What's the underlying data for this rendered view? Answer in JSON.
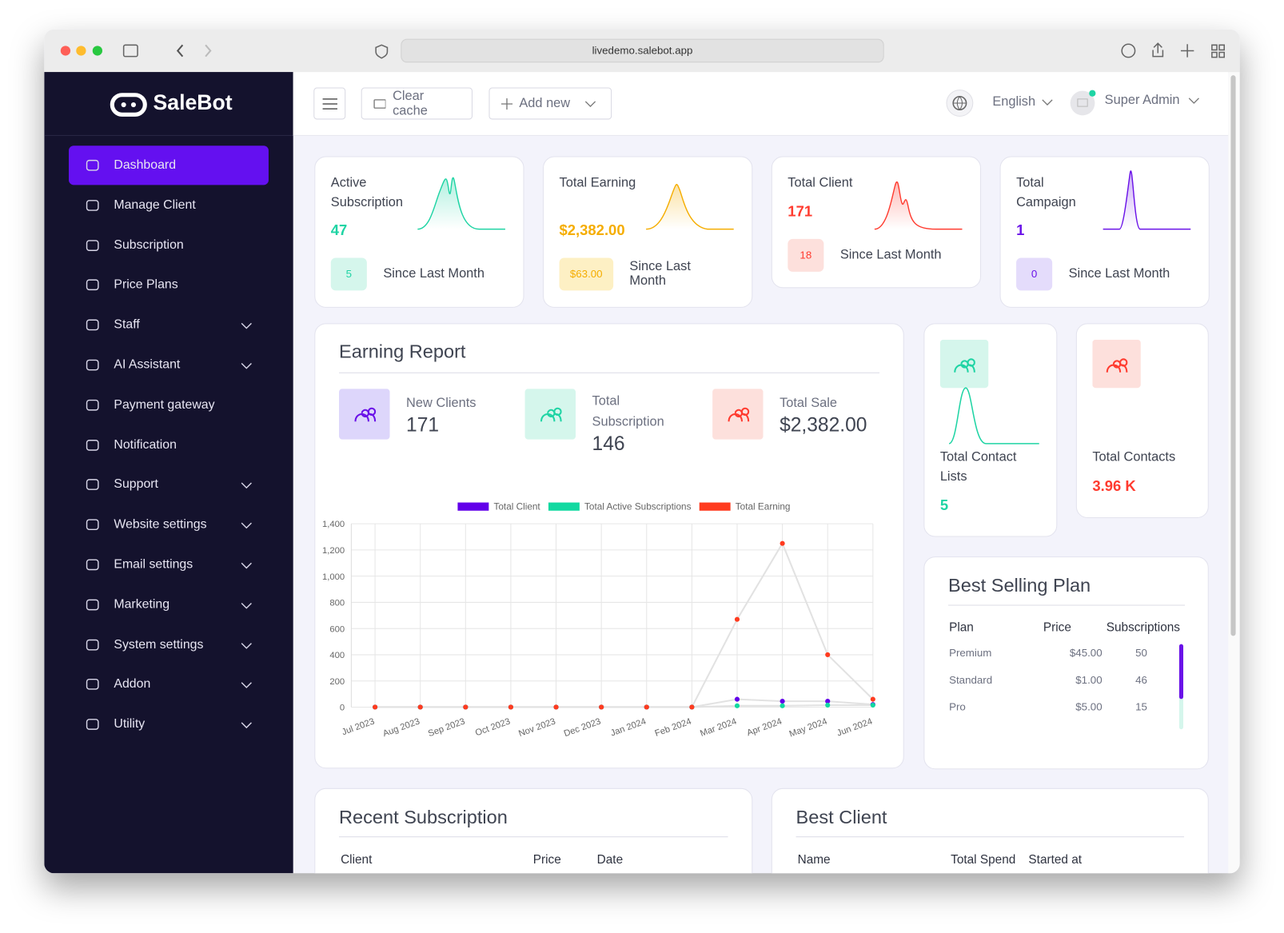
{
  "browser": {
    "url": "livedemo.salebot.app"
  },
  "sidebar": {
    "brand": "SaleBot",
    "items": [
      {
        "label": "Dashboard",
        "active": true
      },
      {
        "label": "Manage Client"
      },
      {
        "label": "Subscription"
      },
      {
        "label": "Price Plans"
      },
      {
        "label": "Staff",
        "submenu": true
      },
      {
        "label": "AI Assistant",
        "submenu": true
      },
      {
        "label": "Payment gateway"
      },
      {
        "label": "Notification"
      },
      {
        "label": "Support",
        "submenu": true
      },
      {
        "label": "Website settings",
        "submenu": true
      },
      {
        "label": "Email settings",
        "submenu": true
      },
      {
        "label": "Marketing",
        "submenu": true
      },
      {
        "label": "System settings",
        "submenu": true
      },
      {
        "label": "Addon",
        "submenu": true
      },
      {
        "label": "Utility",
        "submenu": true
      }
    ]
  },
  "topbar": {
    "clear_cache": "Clear cache",
    "add_new": "Add new",
    "language": "English",
    "user": "Super Admin"
  },
  "stats": [
    {
      "title": "Active Subscription",
      "value": "47",
      "change": "5",
      "note": "Since Last Month",
      "color": "#1fd4a4",
      "badge_color": "#d5f6ec"
    },
    {
      "title": "Total Earning",
      "value": "$2,382.00",
      "change": "$63.00",
      "note": "Since Last Month",
      "color": "#f5ad00",
      "badge_color": "#fdf0c4"
    },
    {
      "title": "Total Client",
      "value": "171",
      "change": "18",
      "note": "Since Last Month",
      "color": "#ff3b2f",
      "badge_color": "#fde0dc"
    },
    {
      "title": "Total Campaign",
      "value": "1",
      "change": "0",
      "note": "Since Last Month",
      "color": "#6a12e8",
      "badge_color": "#e4dcfb"
    }
  ],
  "earning_report": {
    "title": "Earning Report",
    "summary": [
      {
        "label": "New Clients",
        "value": "171",
        "color": "#6a12e8",
        "bg": "#ddd6fb"
      },
      {
        "label": "Total Subscription",
        "value": "146",
        "color": "#1fd4a4",
        "bg": "#d5f6ec"
      },
      {
        "label": "Total Sale",
        "value": "$2,382.00",
        "color": "#ff3b2f",
        "bg": "#fde0dc"
      }
    ]
  },
  "chart_data": {
    "type": "line",
    "categories": [
      "Jul 2023",
      "Aug 2023",
      "Sep 2023",
      "Oct 2023",
      "Nov 2023",
      "Dec 2023",
      "Jan 2024",
      "Feb 2024",
      "Mar 2024",
      "Apr 2024",
      "May 2024",
      "Jun 2024"
    ],
    "series": [
      {
        "name": "Total Client",
        "color": "#6200ea",
        "values": [
          0,
          0,
          0,
          0,
          0,
          0,
          0,
          0,
          60,
          45,
          45,
          20
        ]
      },
      {
        "name": "Total Active Subscriptions",
        "color": "#12d9a1",
        "values": [
          0,
          0,
          0,
          0,
          0,
          0,
          0,
          0,
          10,
          10,
          15,
          15
        ]
      },
      {
        "name": "Total Earning",
        "color": "#ff3b1f",
        "values": [
          0,
          0,
          0,
          0,
          0,
          0,
          0,
          0,
          670,
          1250,
          400,
          60
        ]
      }
    ],
    "ylim": [
      0,
      1400
    ],
    "yticks": [
      0,
      200,
      400,
      600,
      800,
      {
        "value": 1000,
        "label": "1,000"
      },
      {
        "value": 1200,
        "label": "1,200"
      },
      {
        "value": 1400,
        "label": "1,400"
      }
    ],
    "grid": true,
    "line_color": "#e2e2e2",
    "legend": "top"
  },
  "contacts": [
    {
      "label": "Total Contact Lists",
      "value": "5",
      "color": "#1fd4a4",
      "bg": "#d5f6ec"
    },
    {
      "label": "Total Contacts",
      "value": "3.96 K",
      "color": "#ff3b2f",
      "bg": "#fde0dc"
    }
  ],
  "best_selling_plan": {
    "title": "Best Selling Plan",
    "columns": [
      "Plan",
      "Price",
      "Subscriptions"
    ],
    "rows": [
      [
        "Premium",
        "$45.00",
        "50"
      ],
      [
        "Standard",
        "$1.00",
        "46"
      ],
      [
        "Pro",
        "$5.00",
        "15"
      ]
    ]
  },
  "recent_subscription": {
    "title": "Recent Subscription",
    "columns": [
      "Client",
      "Price",
      "Date"
    ]
  },
  "best_client": {
    "title": "Best Client",
    "columns": [
      "Name",
      "Total Spend",
      "Started at"
    ]
  }
}
